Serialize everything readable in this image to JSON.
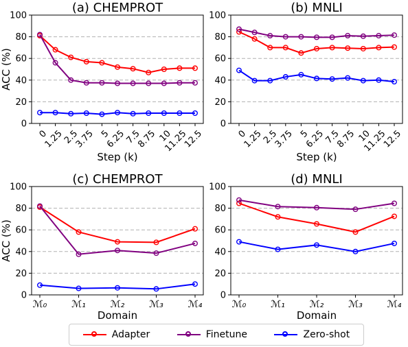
{
  "colors": {
    "Adapter": "#ff0000",
    "Finetune": "#800080",
    "Zero-shot": "#0000ff"
  },
  "legend": {
    "items": [
      {
        "label": "Adapter",
        "color": "#ff0000"
      },
      {
        "label": "Finetune",
        "color": "#800080"
      },
      {
        "label": "Zero-shot",
        "color": "#0000ff"
      }
    ]
  },
  "chart_data": [
    {
      "type": "line",
      "title": "(a) CHEMPROT",
      "xlabel": "Step (k)",
      "ylabel": "ACC (%)",
      "ylim": [
        0,
        100
      ],
      "yticks": [
        "0",
        "20",
        "40",
        "60",
        "80",
        "100"
      ],
      "grid": "horizontal dashed",
      "categories": [
        "0",
        "1.25",
        "2.5",
        "3.75",
        "5",
        "6.25",
        "7.5",
        "8.75",
        "10",
        "11.25",
        "12.5"
      ],
      "series": [
        {
          "name": "Adapter",
          "values": [
            81,
            68,
            61,
            57,
            56,
            52,
            50.5,
            47,
            50,
            51,
            51
          ]
        },
        {
          "name": "Finetune",
          "values": [
            82,
            56,
            40,
            37.5,
            37.5,
            37,
            37,
            37,
            37,
            37.5,
            37.5
          ]
        },
        {
          "name": "Zero-shot",
          "values": [
            10,
            10,
            9,
            9.5,
            8.5,
            10,
            9,
            9.5,
            9.5,
            9.5,
            9.5
          ]
        }
      ]
    },
    {
      "type": "line",
      "title": "(b) MNLI",
      "xlabel": "Step (k)",
      "ylabel": "",
      "ylim": [
        0,
        100
      ],
      "yticks": [
        "0",
        "20",
        "40",
        "60",
        "80",
        "100"
      ],
      "grid": "horizontal dashed",
      "categories": [
        "0",
        "1.25",
        "2.5",
        "3.75",
        "5",
        "6.25",
        "7.5",
        "8.75",
        "10",
        "11.25",
        "12.5"
      ],
      "series": [
        {
          "name": "Adapter",
          "values": [
            84.5,
            78,
            70,
            70,
            65,
            69,
            70,
            69.5,
            69,
            70,
            70.5
          ]
        },
        {
          "name": "Finetune",
          "values": [
            87,
            84,
            81,
            80,
            80,
            79.5,
            79.5,
            81,
            80.5,
            81,
            81.5
          ]
        },
        {
          "name": "Zero-shot",
          "values": [
            49,
            39.5,
            39.5,
            43,
            45,
            41.5,
            41,
            42,
            39.5,
            40,
            38.5
          ]
        }
      ]
    },
    {
      "type": "line",
      "title": "(c) CHEMPROT",
      "xlabel": "Domain",
      "ylabel": "ACC (%)",
      "ylim": [
        0,
        100
      ],
      "yticks": [
        "0",
        "20",
        "40",
        "60",
        "80",
        "100"
      ],
      "grid": "horizontal dashed",
      "categories": [
        "M0",
        "M1",
        "M2",
        "M3",
        "M4"
      ],
      "series": [
        {
          "name": "Adapter",
          "values": [
            81,
            58,
            49,
            48.5,
            61
          ]
        },
        {
          "name": "Finetune",
          "values": [
            82,
            37.5,
            41,
            38.5,
            47.5
          ]
        },
        {
          "name": "Zero-shot",
          "values": [
            9,
            6,
            6.5,
            5.5,
            10
          ]
        }
      ]
    },
    {
      "type": "line",
      "title": "(d) MNLI",
      "xlabel": "Domain",
      "ylabel": "",
      "ylim": [
        0,
        100
      ],
      "yticks": [
        "0",
        "20",
        "40",
        "60",
        "80",
        "100"
      ],
      "grid": "horizontal dashed",
      "categories": [
        "M0",
        "M1",
        "M2",
        "M3",
        "M4"
      ],
      "series": [
        {
          "name": "Adapter",
          "values": [
            84.5,
            72,
            65.5,
            58,
            72.5
          ]
        },
        {
          "name": "Finetune",
          "values": [
            87.5,
            81.5,
            80.5,
            79,
            84.5
          ]
        },
        {
          "name": "Zero-shot",
          "values": [
            49,
            42,
            46,
            40,
            47.5
          ]
        }
      ]
    }
  ]
}
